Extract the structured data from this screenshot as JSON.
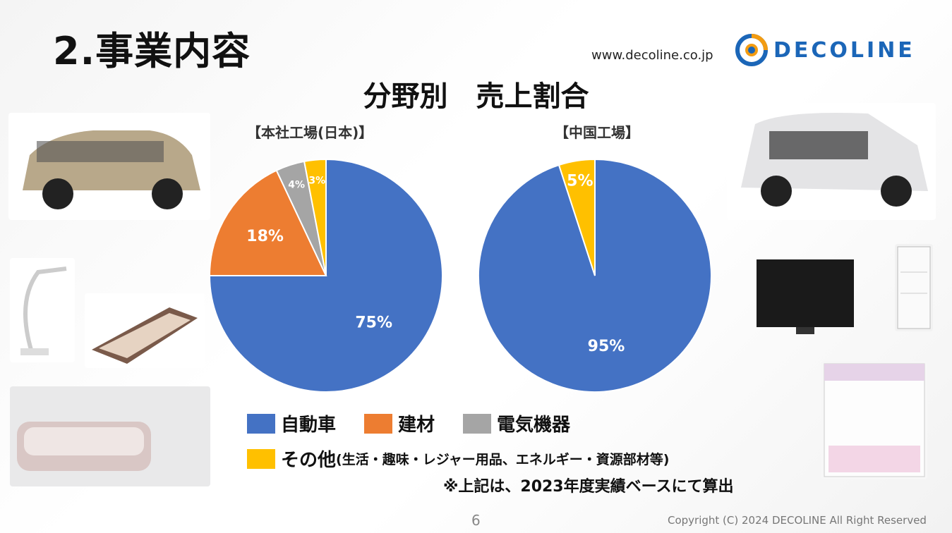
{
  "header": {
    "title": "2.事業内容",
    "url": "www.decoline.co.jp",
    "logo_text": "DECOLINE"
  },
  "chart_heading": "分野別　売上割合",
  "chart_data": [
    {
      "type": "pie",
      "title": "【本社工場(日本)】",
      "categories": [
        "自動車",
        "建材",
        "電気機器",
        "その他"
      ],
      "values": [
        75,
        18,
        4,
        3
      ],
      "labels": [
        "75%",
        "18%",
        "4%",
        "3%"
      ],
      "colors": [
        "#4472C4",
        "#ED7D31",
        "#A5A5A5",
        "#FFC000"
      ]
    },
    {
      "type": "pie",
      "title": "【中国工場】",
      "categories": [
        "自動車",
        "その他"
      ],
      "values": [
        95,
        5
      ],
      "labels": [
        "95%",
        "5%"
      ],
      "colors": [
        "#4472C4",
        "#FFC000"
      ]
    }
  ],
  "legend": {
    "items": [
      {
        "label": "自動車",
        "color": "#4472C4"
      },
      {
        "label": "建材",
        "color": "#ED7D31"
      },
      {
        "label": "電気機器",
        "color": "#A5A5A5"
      },
      {
        "label": "その他",
        "color": "#FFC000"
      }
    ],
    "other_note": "(生活・趣味・レジャー用品、エネルギー・資源部材等)"
  },
  "note": "※上記は、2023年度実績ベースにて算出",
  "footer": {
    "page_number": "6",
    "copyright": "Copyright (C) 2024 DECOLINE All Right Reserved"
  },
  "icons": {
    "logo": "decoline-logo-icon",
    "photos": [
      "suv-car-photo",
      "desk-lamp-photo",
      "massage-mat-photo",
      "bathtub-photo",
      "minivan-photo",
      "television-photo",
      "display-fridge-photo",
      "ufo-catcher-photo"
    ]
  }
}
